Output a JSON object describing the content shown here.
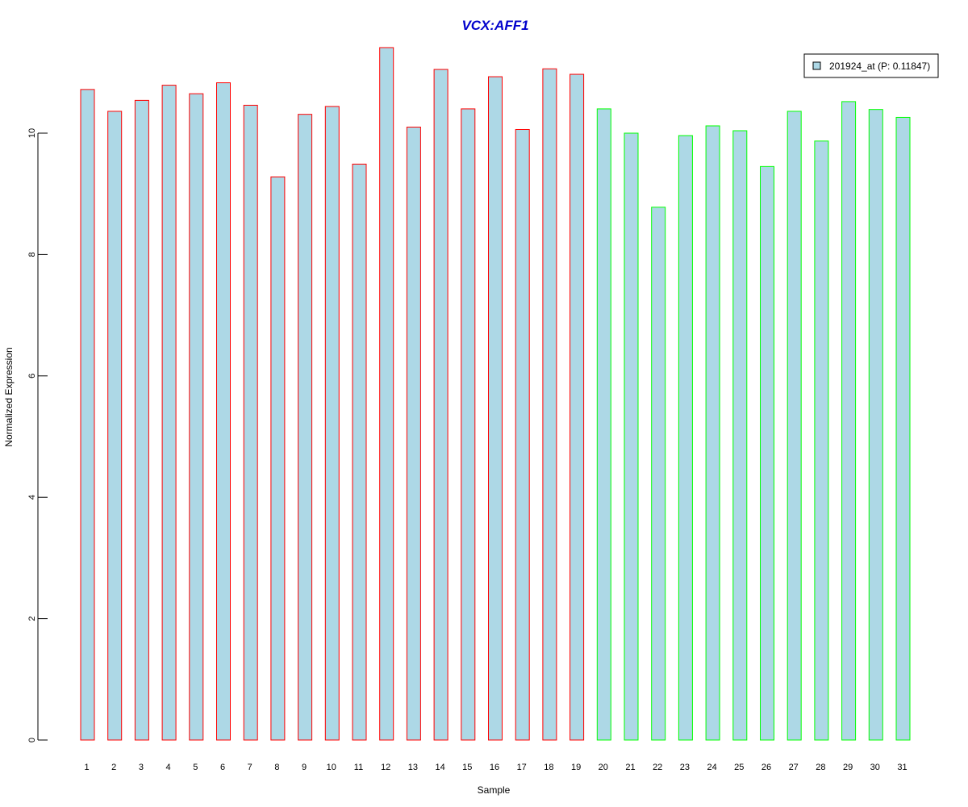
{
  "chart_data": {
    "type": "bar",
    "title": "VCX:AFF1",
    "xlabel": "Sample",
    "ylabel": "Normalized Expression",
    "ylim": [
      0,
      11.4
    ],
    "yticks": [
      0,
      2,
      4,
      6,
      8,
      10
    ],
    "grid": false,
    "legend_position": "top-right",
    "categories": [
      "1",
      "2",
      "3",
      "4",
      "5",
      "6",
      "7",
      "8",
      "9",
      "10",
      "11",
      "12",
      "13",
      "14",
      "15",
      "16",
      "17",
      "18",
      "19",
      "20",
      "21",
      "22",
      "23",
      "24",
      "25",
      "26",
      "27",
      "28",
      "29",
      "30",
      "31"
    ],
    "series": [
      {
        "name": "201924_at (P: 0.11847)",
        "values": [
          10.72,
          10.36,
          10.54,
          10.79,
          10.65,
          10.83,
          10.46,
          9.28,
          10.31,
          10.44,
          9.49,
          11.41,
          10.1,
          11.05,
          10.4,
          10.93,
          10.06,
          11.06,
          10.97,
          10.4,
          10.0,
          8.78,
          9.96,
          10.12,
          10.04,
          9.45,
          10.36,
          9.87,
          10.52,
          10.39,
          10.26
        ]
      }
    ],
    "group_sizes": [
      19,
      12
    ],
    "colors": {
      "fill": "#add8e6",
      "group1_border": "#ff0000",
      "group2_border": "#00ff00",
      "title": "#0000cc",
      "axis": "#000000"
    }
  }
}
